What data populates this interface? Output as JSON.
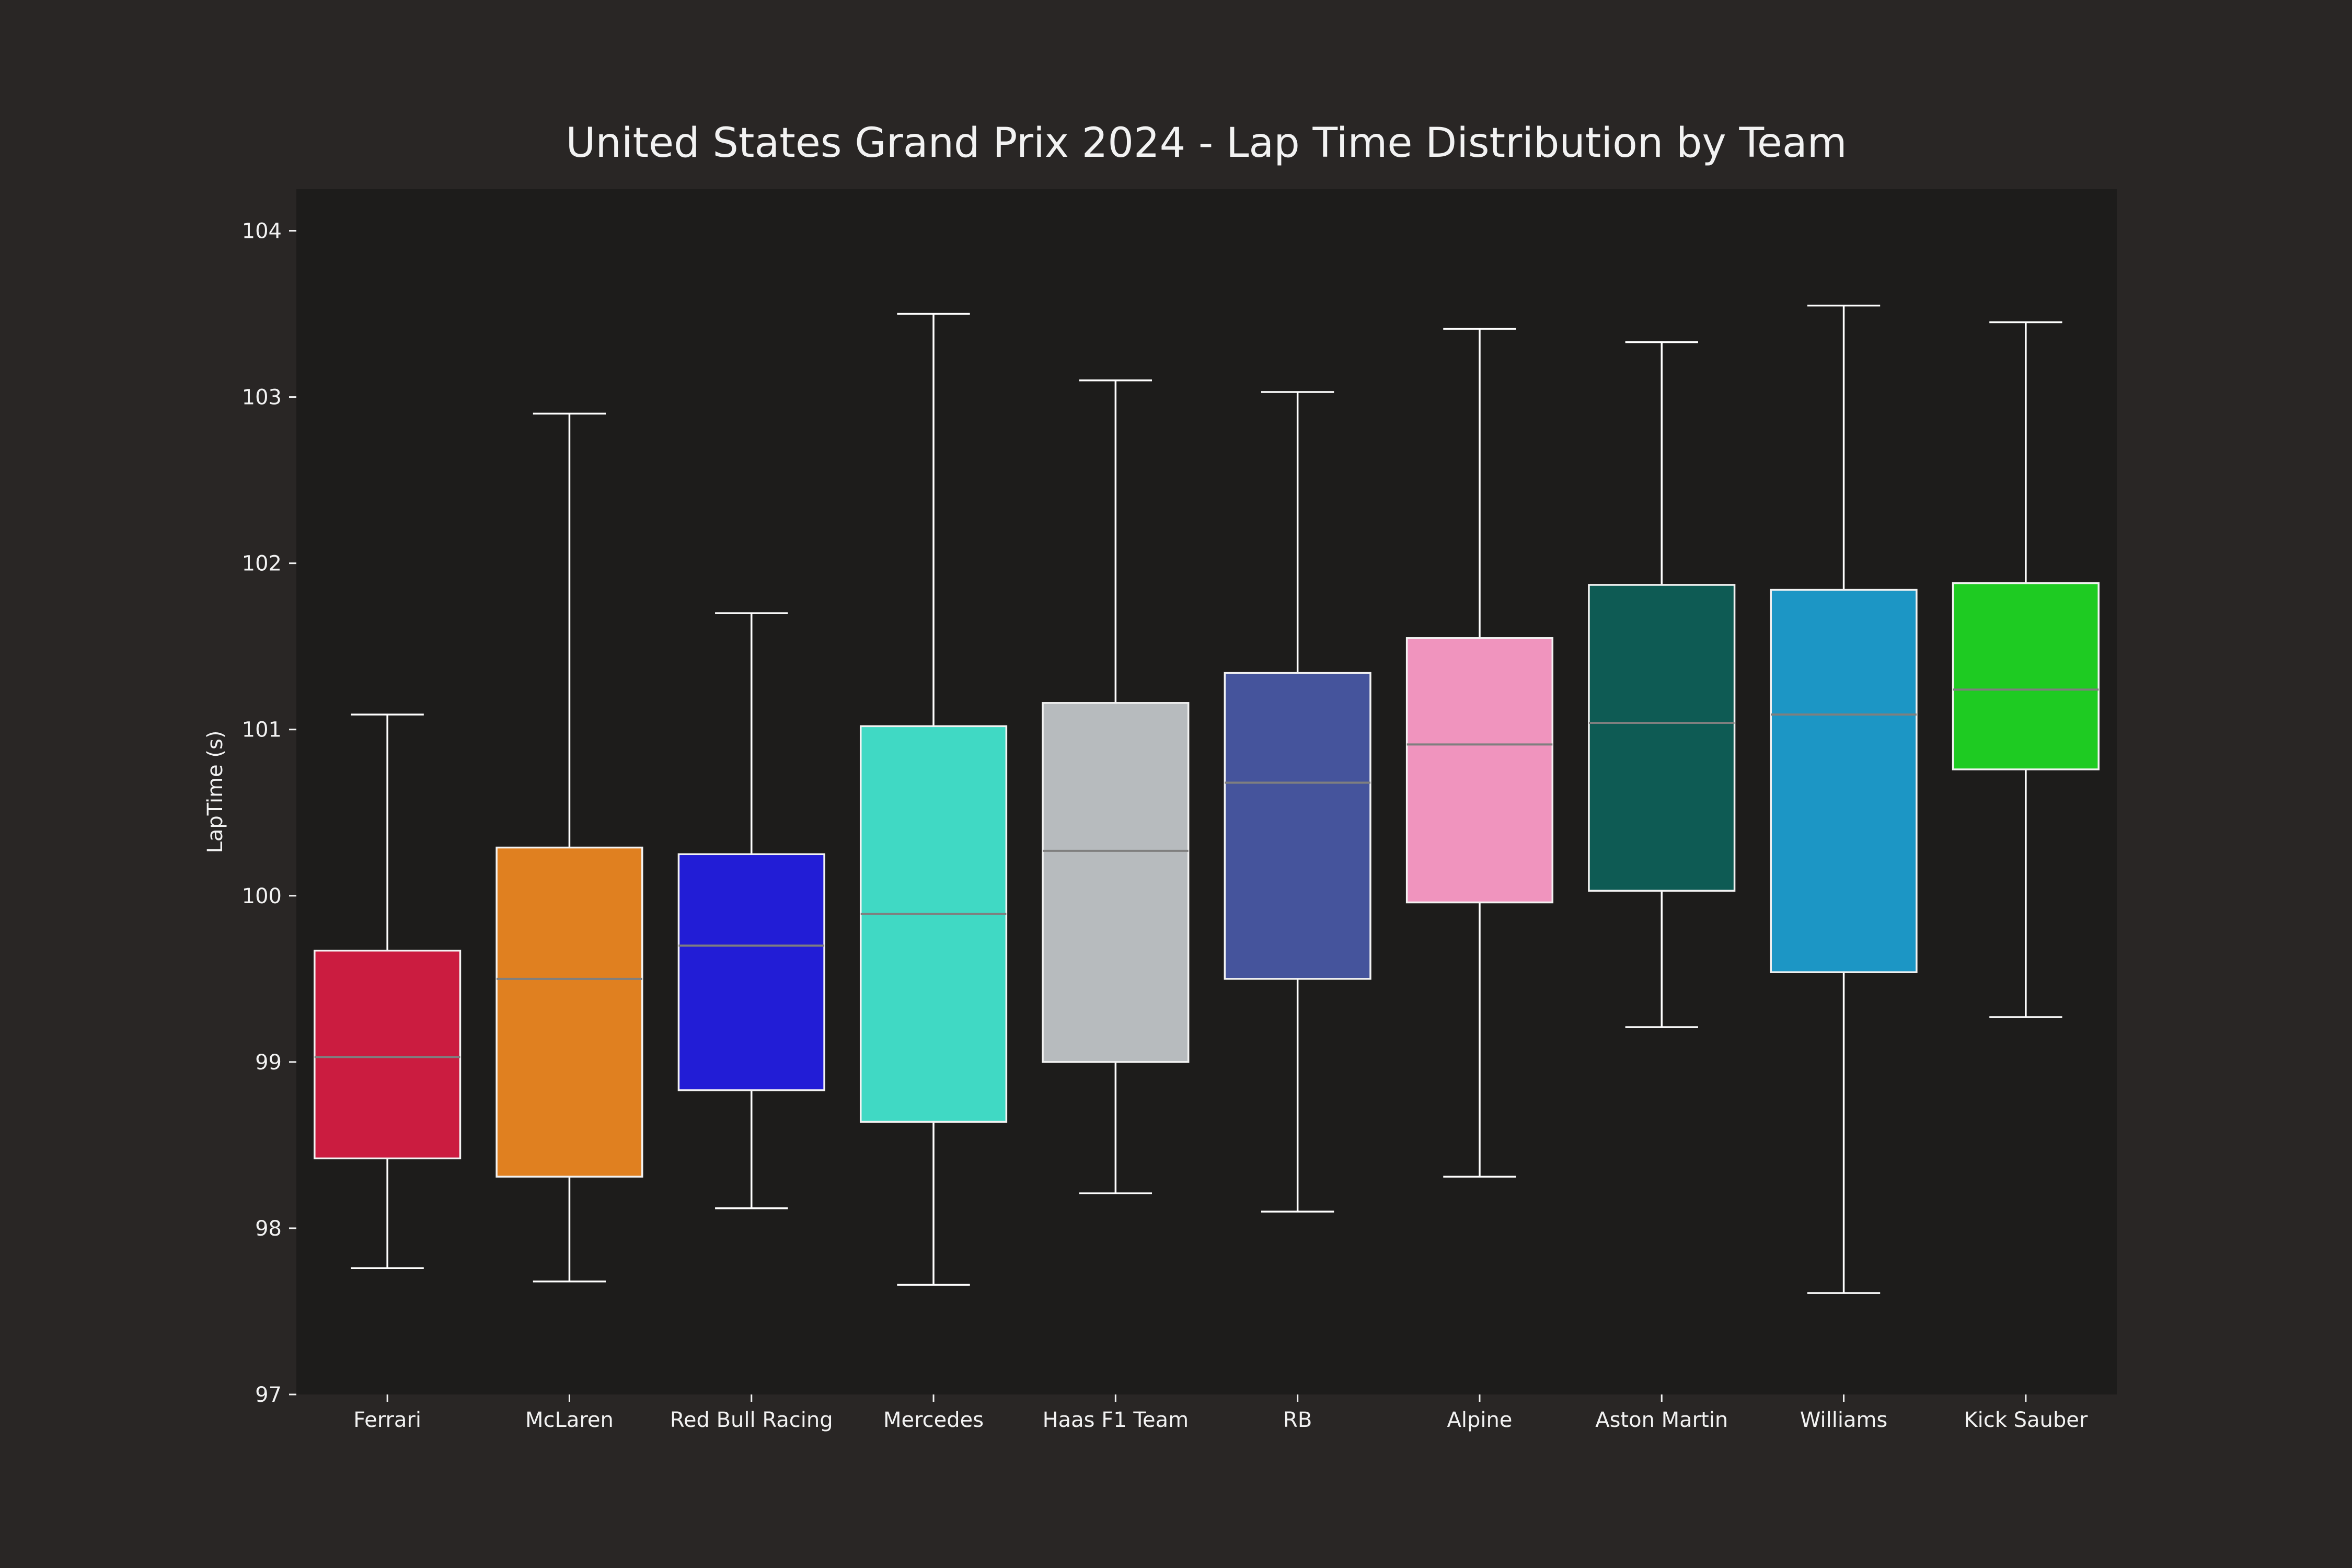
{
  "chart_data": {
    "type": "box",
    "title": "United States Grand Prix 2024 - Lap Time Distribution by Team",
    "xlabel": "",
    "ylabel": "LapTime (s)",
    "ylim": [
      97,
      104.25
    ],
    "yticks": [
      97,
      98,
      99,
      100,
      101,
      102,
      103,
      104
    ],
    "grid": false,
    "legend": "none",
    "categories": [
      "Ferrari",
      "McLaren",
      "Red Bull Racing",
      "Mercedes",
      "Haas F1 Team",
      "RB",
      "Alpine",
      "Aston Martin",
      "Williams",
      "Kick Sauber"
    ],
    "boxes": [
      {
        "team": "Ferrari",
        "color": "#CB1C40",
        "whisker_low": 97.76,
        "q1": 98.42,
        "median": 99.03,
        "q3": 99.67,
        "whisker_high": 101.09
      },
      {
        "team": "McLaren",
        "color": "#E08020",
        "whisker_low": 97.68,
        "q1": 98.31,
        "median": 99.5,
        "q3": 100.29,
        "whisker_high": 102.9
      },
      {
        "team": "Red Bull Racing",
        "color": "#221DD6",
        "whisker_low": 98.12,
        "q1": 98.83,
        "median": 99.7,
        "q3": 100.25,
        "whisker_high": 101.7
      },
      {
        "team": "Mercedes",
        "color": "#40D9C4",
        "whisker_low": 97.66,
        "q1": 98.64,
        "median": 99.89,
        "q3": 101.02,
        "whisker_high": 103.5
      },
      {
        "team": "Haas F1 Team",
        "color": "#B7BBBE",
        "whisker_low": 98.21,
        "q1": 99.0,
        "median": 100.27,
        "q3": 101.16,
        "whisker_high": 103.1
      },
      {
        "team": "RB",
        "color": "#45549C",
        "whisker_low": 98.1,
        "q1": 99.5,
        "median": 100.68,
        "q3": 101.34,
        "whisker_high": 103.03
      },
      {
        "team": "Alpine",
        "color": "#F094BE",
        "whisker_low": 98.31,
        "q1": 99.96,
        "median": 100.91,
        "q3": 101.55,
        "whisker_high": 103.41
      },
      {
        "team": "Aston Martin",
        "color": "#0E5B54",
        "whisker_low": 99.21,
        "q1": 100.03,
        "median": 101.04,
        "q3": 101.87,
        "whisker_high": 103.33
      },
      {
        "team": "Williams",
        "color": "#1C96C5",
        "whisker_low": 97.61,
        "q1": 99.54,
        "median": 101.09,
        "q3": 101.84,
        "whisker_high": 103.55
      },
      {
        "team": "Kick Sauber",
        "color": "#1ECB22",
        "whisker_low": 99.27,
        "q1": 100.76,
        "median": 101.24,
        "q3": 101.88,
        "whisker_high": 103.45
      }
    ],
    "colors": {
      "figure_background": "#292625",
      "plot_background": "#1D1C1B",
      "text": "#F2F2F2",
      "whisker": "#FFFFFF",
      "median": "#7F7F7F"
    }
  }
}
